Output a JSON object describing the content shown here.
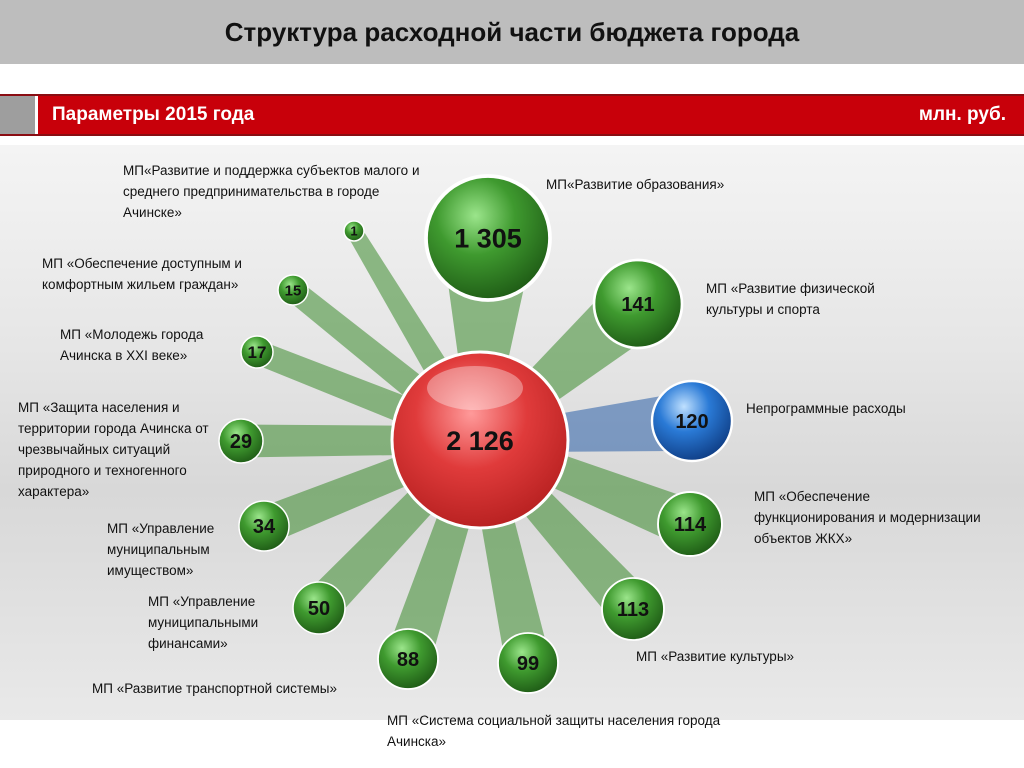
{
  "header": {
    "title": "Структура расходной части бюджета города"
  },
  "parameters_bar": {
    "label": "Параметры 2015 года",
    "unit": "млн. руб."
  },
  "center": {
    "value": "2 126"
  },
  "items": [
    {
      "id": "education",
      "label": "МП«Развитие образования»",
      "value": "1 305",
      "color": "green"
    },
    {
      "id": "small-business",
      "label": "МП«Развитие и поддержка субъектов малого и среднего предпринимательства в городе Ачинске»",
      "value": "1",
      "color": "green"
    },
    {
      "id": "housing",
      "label": "МП «Обеспечение доступным и комфортным жильем граждан»",
      "value": "15",
      "color": "green"
    },
    {
      "id": "youth",
      "label": "МП «Молодежь города Ачинска в XXI веке»",
      "value": "17",
      "color": "green"
    },
    {
      "id": "population-protection",
      "label": "МП «Защита населения и территории города Ачинска от чрезвычайных ситуаций природного и техногенного характера»",
      "value": "29",
      "color": "green"
    },
    {
      "id": "property",
      "label": "МП «Управление муниципальным имуществом»",
      "value": "34",
      "color": "green"
    },
    {
      "id": "finance",
      "label": "МП «Управление муниципальными финансами»",
      "value": "50",
      "color": "green"
    },
    {
      "id": "transport",
      "label": "МП «Развитие транспортной системы»",
      "value": "88",
      "color": "green"
    },
    {
      "id": "social-protection",
      "label": "МП «Система социальной защиты населения города Ачинска»",
      "value": "99",
      "color": "green"
    },
    {
      "id": "culture",
      "label": "МП «Развитие культуры»",
      "value": "113",
      "color": "green"
    },
    {
      "id": "zhkh",
      "label": "МП «Обеспечение функционирования и модернизации объектов ЖКХ»",
      "value": "114",
      "color": "green"
    },
    {
      "id": "nonprogram",
      "label": "Непрограммные расходы",
      "value": "120",
      "color": "blue"
    },
    {
      "id": "sport",
      "label": "МП «Развитие физической культуры и спорта",
      "value": "141",
      "color": "green"
    }
  ],
  "colors": {
    "header_bg": "#bdbdbd",
    "param_bar_bg": "#c8000a",
    "center_bubble": "#e03b3b",
    "green_bubble": "#3f9a2f",
    "blue_bubble": "#2a7ad6"
  }
}
